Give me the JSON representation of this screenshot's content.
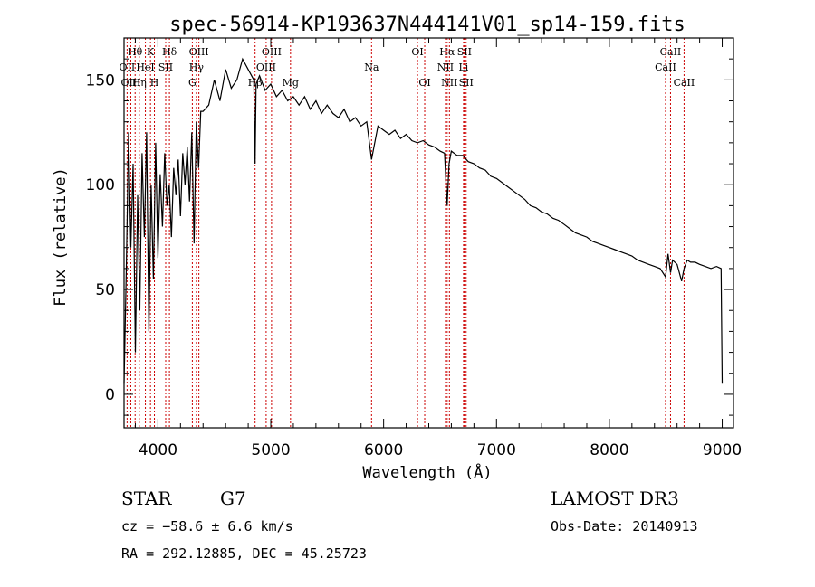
{
  "chart_data": {
    "type": "line",
    "title": "spec-56914-KP193637N444141V01_sp14-159.fits",
    "xlabel": "Wavelength (Å)",
    "ylabel": "Flux (relative)",
    "xlim": [
      3700,
      9100
    ],
    "ylim": [
      -16,
      170
    ],
    "xticks": [
      4000,
      5000,
      6000,
      7000,
      8000,
      9000
    ],
    "yticks": [
      0,
      50,
      100,
      150
    ],
    "xtick_labels": [
      "4000",
      "5000",
      "6000",
      "7000",
      "8000",
      "9000"
    ],
    "ytick_labels": [
      "0",
      "50",
      "100",
      "150"
    ],
    "series": [
      {
        "name": "flux",
        "x": [
          3700,
          3720,
          3740,
          3760,
          3780,
          3800,
          3820,
          3840,
          3860,
          3880,
          3900,
          3920,
          3940,
          3960,
          3980,
          4000,
          4020,
          4040,
          4060,
          4080,
          4100,
          4120,
          4140,
          4160,
          4180,
          4200,
          4220,
          4240,
          4260,
          4280,
          4300,
          4320,
          4340,
          4360,
          4380,
          4400,
          4450,
          4500,
          4550,
          4600,
          4650,
          4700,
          4750,
          4800,
          4850,
          4861,
          4870,
          4900,
          4950,
          5000,
          5050,
          5100,
          5150,
          5200,
          5250,
          5300,
          5350,
          5400,
          5450,
          5500,
          5550,
          5600,
          5650,
          5700,
          5750,
          5800,
          5850,
          5893,
          5950,
          6000,
          6050,
          6100,
          6150,
          6200,
          6250,
          6300,
          6350,
          6400,
          6450,
          6500,
          6540,
          6563,
          6580,
          6600,
          6650,
          6700,
          6750,
          6800,
          6850,
          6900,
          6950,
          7000,
          7050,
          7100,
          7150,
          7200,
          7250,
          7300,
          7350,
          7400,
          7450,
          7500,
          7550,
          7600,
          7650,
          7700,
          7750,
          7800,
          7850,
          7900,
          7950,
          8000,
          8050,
          8100,
          8150,
          8200,
          8250,
          8300,
          8350,
          8400,
          8450,
          8498,
          8520,
          8542,
          8560,
          8600,
          8640,
          8662,
          8690,
          8720,
          8760,
          8800,
          8850,
          8900,
          8950,
          8990,
          9000
        ],
        "y": [
          5,
          60,
          125,
          70,
          110,
          20,
          95,
          40,
          115,
          75,
          125,
          30,
          100,
          55,
          120,
          65,
          105,
          80,
          115,
          90,
          100,
          75,
          108,
          95,
          112,
          85,
          115,
          100,
          118,
          92,
          125,
          72,
          130,
          108,
          135,
          135,
          138,
          150,
          140,
          155,
          146,
          150,
          160,
          155,
          150,
          110,
          148,
          152,
          145,
          148,
          142,
          145,
          140,
          142,
          138,
          142,
          136,
          140,
          134,
          138,
          134,
          132,
          136,
          130,
          132,
          128,
          130,
          112,
          128,
          126,
          124,
          126,
          122,
          124,
          121,
          120,
          121,
          119,
          118,
          116,
          115,
          90,
          110,
          116,
          114,
          114,
          111,
          110,
          108,
          107,
          104,
          103,
          101,
          99,
          97,
          95,
          93,
          90,
          89,
          87,
          86,
          84,
          83,
          81,
          79,
          77,
          76,
          75,
          73,
          72,
          71,
          70,
          69,
          68,
          67,
          66,
          64,
          63,
          62,
          61,
          60,
          56,
          67,
          58,
          64,
          62,
          54,
          60,
          64,
          63,
          63,
          62,
          61,
          60,
          61,
          60,
          5
        ]
      }
    ],
    "spectral_lines": [
      {
        "label": "Hθ",
        "wavelength": 3798,
        "row": 0
      },
      {
        "label": "OII",
        "wavelength": 3727,
        "row": 1
      },
      {
        "label": "OIII",
        "wavelength": 3760,
        "row": 2
      },
      {
        "label": "K",
        "wavelength": 3934,
        "row": 0
      },
      {
        "label": "Hδ",
        "wavelength": 4102,
        "row": 0
      },
      {
        "label": "HeI",
        "wavelength": 3889,
        "row": 1
      },
      {
        "label": "SII",
        "wavelength": 4069,
        "row": 1
      },
      {
        "label": "Hη",
        "wavelength": 3835,
        "row": 2
      },
      {
        "label": "H",
        "wavelength": 3969,
        "row": 2
      },
      {
        "label": "OIII",
        "wavelength": 4363,
        "row": 0
      },
      {
        "label": "Hγ",
        "wavelength": 4341,
        "row": 1
      },
      {
        "label": "G",
        "wavelength": 4305,
        "row": 2
      },
      {
        "label": "OIII",
        "wavelength": 5007,
        "row": 0
      },
      {
        "label": "OIII",
        "wavelength": 4959,
        "row": 1
      },
      {
        "label": "Hβ",
        "wavelength": 4861,
        "row": 2
      },
      {
        "label": "Mg",
        "wavelength": 5175,
        "row": 2
      },
      {
        "label": "Na",
        "wavelength": 5893,
        "row": 1
      },
      {
        "label": "OI",
        "wavelength": 6300,
        "row": 0
      },
      {
        "label": "OI",
        "wavelength": 6364,
        "row": 2
      },
      {
        "label": "Hα",
        "wavelength": 6563,
        "row": 0
      },
      {
        "label": "SII",
        "wavelength": 6716,
        "row": 0
      },
      {
        "label": "NII",
        "wavelength": 6548,
        "row": 1
      },
      {
        "label": "Li",
        "wavelength": 6708,
        "row": 1
      },
      {
        "label": "NII",
        "wavelength": 6583,
        "row": 2
      },
      {
        "label": "SII",
        "wavelength": 6731,
        "row": 2
      },
      {
        "label": "CaII",
        "wavelength": 8542,
        "row": 0
      },
      {
        "label": "CaII",
        "wavelength": 8498,
        "row": 1
      },
      {
        "label": "CaII",
        "wavelength": 8662,
        "row": 2
      }
    ],
    "line_marker_color": "#cc0000",
    "spectrum_color": "#000000"
  },
  "info": {
    "class_label": "STAR",
    "subclass": "G7",
    "redshift_text": "cz = −58.6 ± 6.6 km/s",
    "coords_text": "RA = 292.12885, DEC =  45.25723",
    "survey": "LAMOST DR3",
    "obs_date": "Obs-Date: 20140913"
  }
}
